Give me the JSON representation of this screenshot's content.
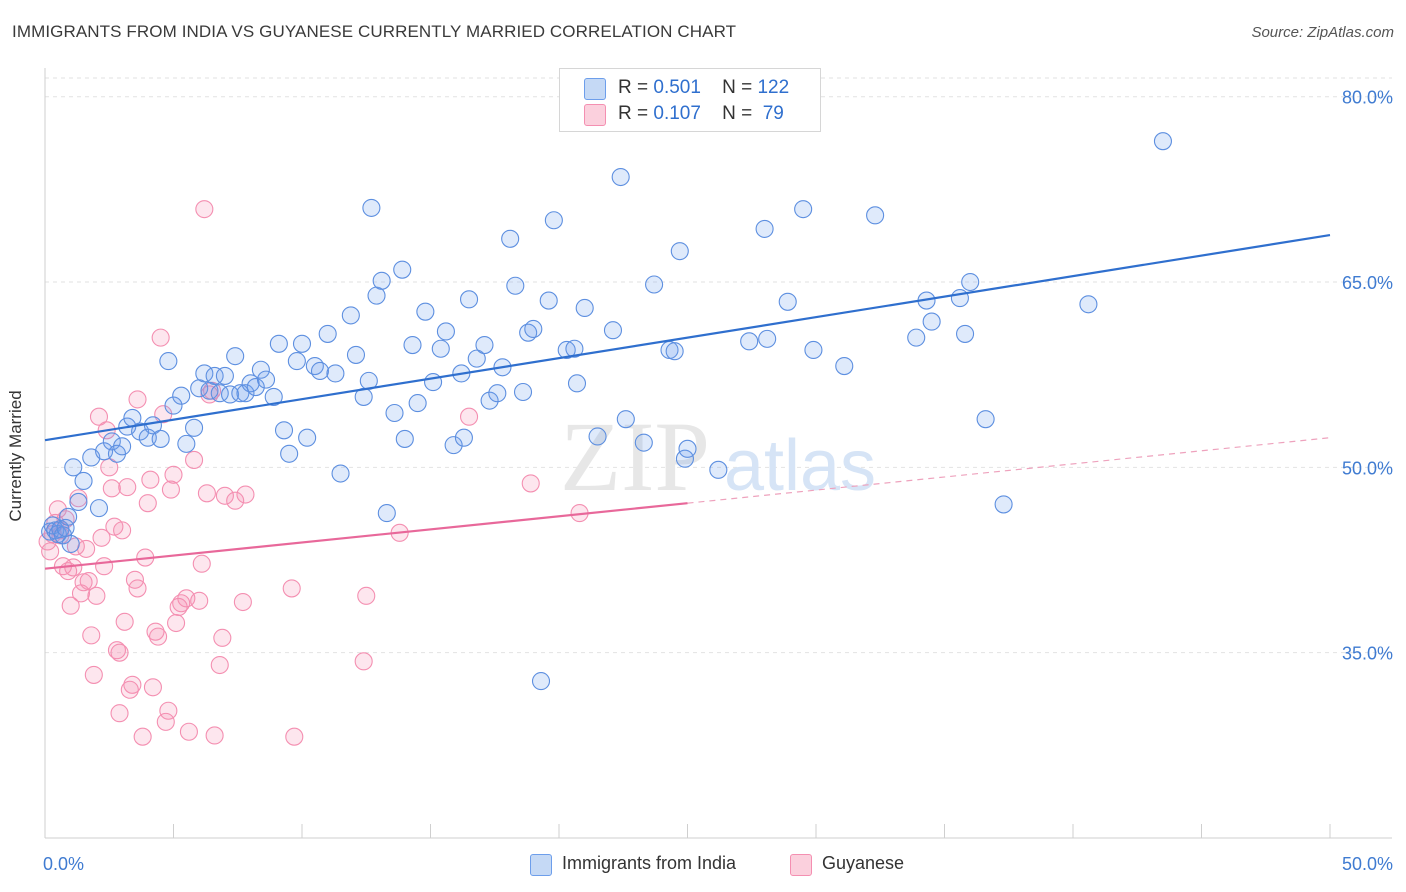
{
  "title": "IMMIGRANTS FROM INDIA VS GUYANESE CURRENTLY MARRIED CORRELATION CHART",
  "source": "Source: ZipAtlas.com",
  "watermark": {
    "zip": "ZIP",
    "atlas": "atlas"
  },
  "legend_top": [
    {
      "r_label": "R =",
      "r_value": "0.501",
      "n_label": "N =",
      "n_value": "122",
      "color": "#6d9eeb"
    },
    {
      "r_label": "R =",
      "r_value": "0.107",
      "n_label": "N =",
      "n_value": " 79",
      "color": "#f48fb1"
    }
  ],
  "chart_data": {
    "type": "scatter",
    "title": "IMMIGRANTS FROM INDIA VS GUYANESE CURRENTLY MARRIED CORRELATION CHART",
    "xlabel": "",
    "ylabel": "Currently Married",
    "xlim": [
      0,
      50
    ],
    "ylim": [
      20,
      82
    ],
    "x_tick_labels": [
      "0.0%",
      "50.0%"
    ],
    "y_ticks": [
      35,
      50,
      65,
      80
    ],
    "y_tick_labels": [
      "35.0%",
      "50.0%",
      "65.0%",
      "80.0%"
    ],
    "grid": true,
    "legend_position": "top-center",
    "series": [
      {
        "name": "Immigrants from India",
        "color": "#6d9eeb",
        "trend": {
          "x": [
            0,
            50
          ],
          "y": [
            52.2,
            68.8
          ],
          "dashed_from": null
        },
        "points": [
          [
            0.2,
            44.8
          ],
          [
            0.3,
            45.3
          ],
          [
            0.4,
            44.9
          ],
          [
            0.5,
            44.6
          ],
          [
            0.6,
            45.0
          ],
          [
            0.7,
            44.5
          ],
          [
            0.8,
            45.1
          ],
          [
            0.9,
            46.0
          ],
          [
            1.0,
            43.8
          ],
          [
            1.1,
            50.0
          ],
          [
            1.3,
            47.2
          ],
          [
            1.5,
            48.9
          ],
          [
            1.8,
            50.8
          ],
          [
            2.1,
            46.7
          ],
          [
            2.3,
            51.3
          ],
          [
            2.6,
            52.1
          ],
          [
            2.8,
            51.1
          ],
          [
            3.0,
            51.7
          ],
          [
            3.2,
            53.3
          ],
          [
            3.4,
            54.0
          ],
          [
            3.7,
            52.9
          ],
          [
            4.0,
            52.4
          ],
          [
            4.2,
            53.4
          ],
          [
            4.5,
            52.3
          ],
          [
            4.8,
            58.6
          ],
          [
            5.0,
            55.0
          ],
          [
            5.3,
            55.8
          ],
          [
            5.5,
            51.9
          ],
          [
            5.8,
            53.2
          ],
          [
            6.0,
            56.4
          ],
          [
            6.2,
            57.6
          ],
          [
            6.4,
            56.2
          ],
          [
            6.6,
            57.4
          ],
          [
            6.8,
            56.0
          ],
          [
            7.0,
            57.4
          ],
          [
            7.2,
            55.9
          ],
          [
            7.4,
            59.0
          ],
          [
            7.6,
            56.0
          ],
          [
            7.8,
            56.0
          ],
          [
            8.0,
            56.8
          ],
          [
            8.2,
            56.5
          ],
          [
            8.4,
            57.9
          ],
          [
            8.6,
            57.1
          ],
          [
            8.9,
            55.7
          ],
          [
            9.1,
            60.0
          ],
          [
            9.3,
            53.0
          ],
          [
            9.5,
            51.1
          ],
          [
            9.8,
            58.6
          ],
          [
            10.0,
            60.0
          ],
          [
            10.2,
            52.4
          ],
          [
            10.5,
            58.2
          ],
          [
            10.7,
            57.8
          ],
          [
            11.0,
            60.8
          ],
          [
            11.3,
            57.6
          ],
          [
            11.5,
            49.5
          ],
          [
            11.9,
            62.3
          ],
          [
            12.1,
            59.1
          ],
          [
            12.4,
            55.7
          ],
          [
            12.6,
            57.0
          ],
          [
            12.7,
            71.0
          ],
          [
            12.9,
            63.9
          ],
          [
            13.1,
            65.1
          ],
          [
            13.3,
            46.3
          ],
          [
            13.6,
            54.4
          ],
          [
            13.9,
            66.0
          ],
          [
            14.0,
            52.3
          ],
          [
            14.3,
            59.9
          ],
          [
            14.5,
            55.2
          ],
          [
            14.8,
            62.6
          ],
          [
            15.1,
            56.9
          ],
          [
            15.4,
            59.6
          ],
          [
            15.6,
            61.0
          ],
          [
            15.9,
            51.8
          ],
          [
            16.2,
            57.6
          ],
          [
            16.3,
            52.4
          ],
          [
            16.5,
            63.6
          ],
          [
            16.8,
            58.8
          ],
          [
            17.1,
            59.9
          ],
          [
            17.3,
            55.4
          ],
          [
            17.6,
            56.0
          ],
          [
            17.8,
            58.1
          ],
          [
            18.1,
            68.5
          ],
          [
            18.3,
            64.7
          ],
          [
            18.6,
            56.1
          ],
          [
            18.8,
            60.9
          ],
          [
            19.0,
            61.2
          ],
          [
            19.3,
            32.7
          ],
          [
            19.6,
            63.5
          ],
          [
            19.8,
            70.0
          ],
          [
            20.3,
            59.5
          ],
          [
            20.6,
            59.6
          ],
          [
            20.7,
            56.8
          ],
          [
            21.0,
            62.9
          ],
          [
            21.5,
            52.5
          ],
          [
            22.1,
            61.1
          ],
          [
            22.4,
            73.5
          ],
          [
            22.6,
            53.9
          ],
          [
            23.3,
            52.0
          ],
          [
            23.7,
            64.8
          ],
          [
            24.3,
            59.5
          ],
          [
            24.5,
            59.4
          ],
          [
            24.7,
            67.5
          ],
          [
            24.9,
            50.7
          ],
          [
            25.0,
            51.5
          ],
          [
            26.2,
            49.8
          ],
          [
            27.4,
            60.2
          ],
          [
            28.0,
            69.3
          ],
          [
            28.1,
            60.4
          ],
          [
            28.9,
            63.4
          ],
          [
            29.5,
            70.9
          ],
          [
            29.9,
            59.5
          ],
          [
            31.1,
            58.2
          ],
          [
            32.3,
            70.4
          ],
          [
            33.9,
            60.5
          ],
          [
            34.3,
            63.5
          ],
          [
            34.5,
            61.8
          ],
          [
            35.6,
            63.7
          ],
          [
            35.8,
            60.8
          ],
          [
            36.0,
            65.0
          ],
          [
            36.6,
            53.9
          ],
          [
            37.3,
            47.0
          ],
          [
            40.6,
            63.2
          ],
          [
            43.5,
            76.4
          ]
        ]
      },
      {
        "name": "Guyanese",
        "color": "#f48fb1",
        "trend": {
          "x": [
            0,
            50
          ],
          "y": [
            41.8,
            52.4
          ],
          "solid_until": 25
        },
        "points": [
          [
            0.1,
            44.0
          ],
          [
            0.2,
            43.2
          ],
          [
            0.3,
            44.6
          ],
          [
            0.4,
            45.5
          ],
          [
            0.5,
            46.6
          ],
          [
            0.6,
            44.5
          ],
          [
            0.7,
            42.0
          ],
          [
            0.8,
            45.8
          ],
          [
            0.9,
            41.6
          ],
          [
            1.0,
            38.8
          ],
          [
            1.1,
            41.9
          ],
          [
            1.3,
            47.5
          ],
          [
            1.4,
            39.8
          ],
          [
            1.5,
            40.7
          ],
          [
            1.6,
            43.4
          ],
          [
            1.7,
            40.8
          ],
          [
            1.8,
            36.4
          ],
          [
            1.9,
            33.2
          ],
          [
            2.0,
            39.6
          ],
          [
            2.1,
            54.1
          ],
          [
            2.2,
            44.3
          ],
          [
            2.3,
            42.0
          ],
          [
            2.4,
            53.0
          ],
          [
            2.5,
            50.0
          ],
          [
            2.6,
            48.3
          ],
          [
            2.7,
            45.2
          ],
          [
            2.8,
            35.2
          ],
          [
            2.9,
            30.1
          ],
          [
            3.0,
            44.9
          ],
          [
            3.1,
            37.5
          ],
          [
            3.2,
            48.4
          ],
          [
            3.3,
            32.0
          ],
          [
            3.4,
            32.4
          ],
          [
            3.5,
            40.9
          ],
          [
            3.6,
            40.2
          ],
          [
            3.8,
            28.2
          ],
          [
            3.9,
            42.7
          ],
          [
            4.0,
            47.1
          ],
          [
            4.1,
            49.0
          ],
          [
            4.2,
            32.2
          ],
          [
            4.3,
            36.7
          ],
          [
            4.4,
            36.3
          ],
          [
            4.5,
            60.5
          ],
          [
            4.6,
            54.3
          ],
          [
            4.7,
            29.4
          ],
          [
            4.8,
            30.3
          ],
          [
            4.9,
            48.2
          ],
          [
            5.0,
            49.4
          ],
          [
            5.1,
            37.4
          ],
          [
            5.2,
            38.7
          ],
          [
            5.3,
            39.0
          ],
          [
            5.5,
            39.4
          ],
          [
            5.6,
            28.6
          ],
          [
            5.8,
            50.6
          ],
          [
            6.0,
            39.2
          ],
          [
            6.1,
            42.2
          ],
          [
            6.2,
            70.9
          ],
          [
            6.3,
            47.9
          ],
          [
            6.4,
            55.9
          ],
          [
            6.5,
            56.2
          ],
          [
            6.6,
            28.3
          ],
          [
            6.8,
            34.0
          ],
          [
            6.9,
            36.2
          ],
          [
            7.0,
            47.7
          ],
          [
            7.4,
            47.3
          ],
          [
            7.7,
            39.1
          ],
          [
            7.8,
            47.8
          ],
          [
            9.6,
            40.2
          ],
          [
            9.7,
            28.2
          ],
          [
            12.4,
            34.3
          ],
          [
            12.5,
            39.6
          ],
          [
            13.8,
            44.7
          ],
          [
            16.5,
            54.1
          ],
          [
            18.9,
            48.7
          ],
          [
            20.8,
            46.3
          ],
          [
            3.6,
            55.5
          ],
          [
            2.9,
            35.0
          ],
          [
            1.2,
            43.6
          ],
          [
            0.6,
            44.9
          ]
        ]
      }
    ]
  },
  "legend_bottom": [
    {
      "label": "Immigrants from India",
      "color": "#6d9eeb"
    },
    {
      "label": "Guyanese",
      "color": "#f48fb1"
    }
  ]
}
